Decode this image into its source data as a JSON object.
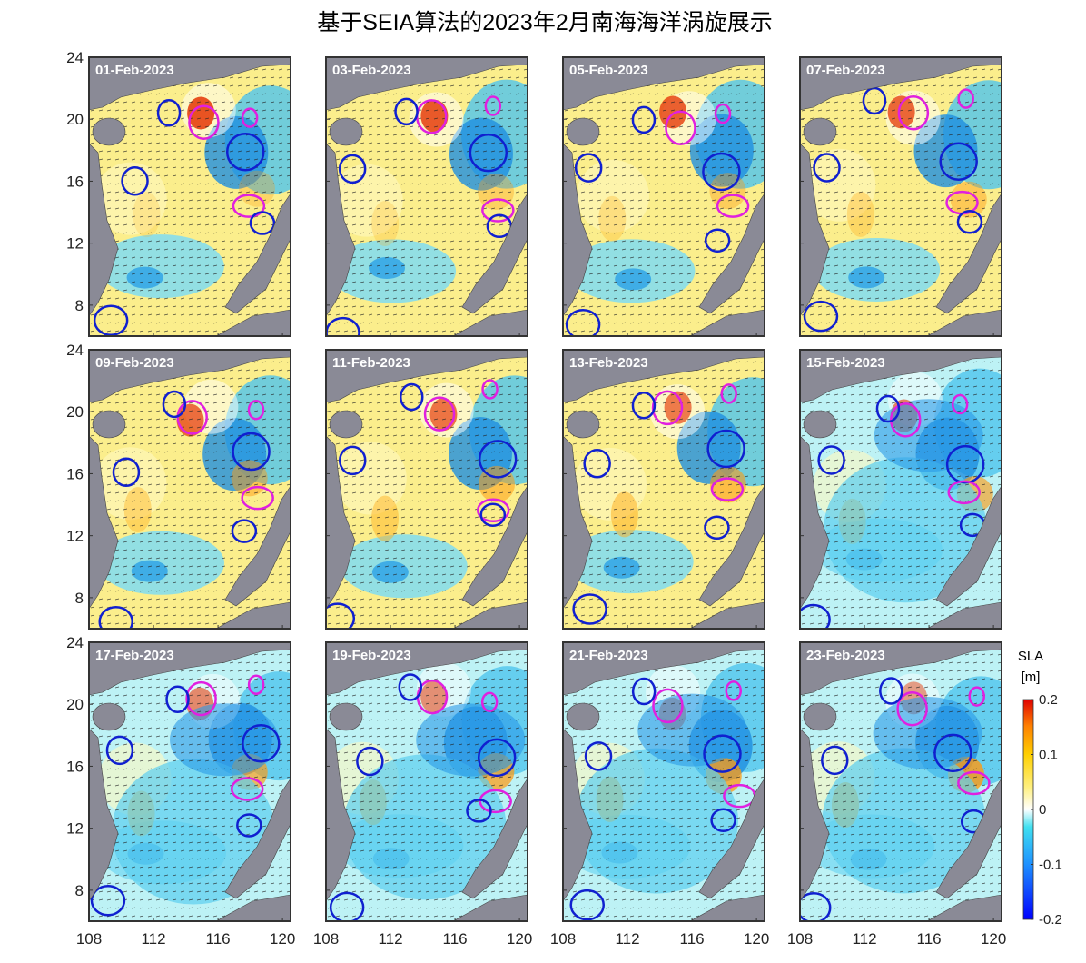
{
  "title": "基于SEIA算法的2023年2月南海海洋涡旋展示",
  "panels": [
    "01-Feb-2023",
    "03-Feb-2023",
    "05-Feb-2023",
    "07-Feb-2023",
    "09-Feb-2023",
    "11-Feb-2023",
    "13-Feb-2023",
    "15-Feb-2023",
    "17-Feb-2023",
    "19-Feb-2023",
    "21-Feb-2023",
    "23-Feb-2023"
  ],
  "xlim": [
    108,
    120.5
  ],
  "xticks": [
    108,
    112,
    116,
    120
  ],
  "ylim": [
    6,
    24
  ],
  "yticks": [
    8,
    12,
    16,
    20,
    24
  ],
  "colorbar": {
    "title": "SLA",
    "unit": "[m]",
    "lim": [
      -0.2,
      0.2
    ],
    "ticks": [
      -0.2,
      -0.1,
      0,
      0.1,
      0.2
    ]
  }
}
